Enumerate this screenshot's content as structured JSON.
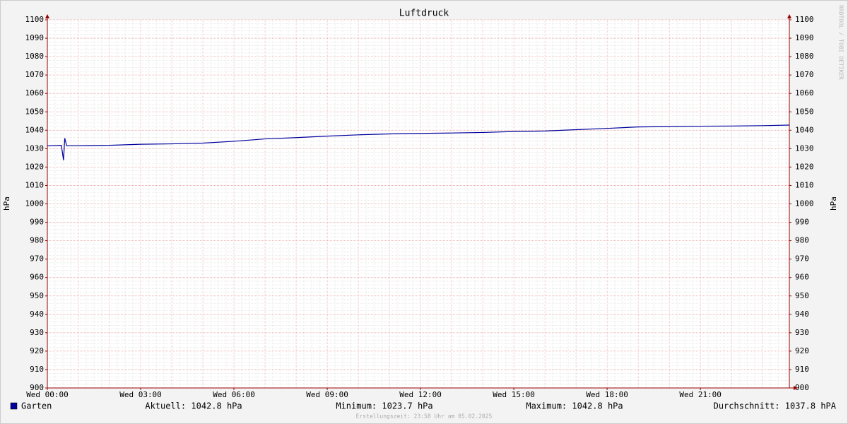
{
  "chart_data": {
    "type": "line",
    "title": "Luftdruck",
    "ylabel": "hPa",
    "watermark": "RRDTOOL / TOBI OETIKER",
    "footer": "Erstellungszeit: 23:58 Uhr am 05.02.2025",
    "x": [
      0,
      0.45,
      0.52,
      0.56,
      0.62,
      1,
      2,
      3,
      4,
      5,
      6,
      7,
      8,
      9,
      10,
      11,
      12,
      13,
      14,
      15,
      16,
      17,
      18,
      19,
      20,
      21,
      22,
      23,
      23.86
    ],
    "series": [
      {
        "name": "Garten",
        "color": "#00009c",
        "values": [
          1031.5,
          1031.8,
          1023.7,
          1035.7,
          1031.6,
          1031.6,
          1031.8,
          1032.4,
          1032.6,
          1033.0,
          1034.0,
          1035.3,
          1036.0,
          1036.8,
          1037.5,
          1038.0,
          1038.3,
          1038.5,
          1038.8,
          1039.3,
          1039.6,
          1040.3,
          1041.0,
          1041.8,
          1042.0,
          1042.2,
          1042.3,
          1042.5,
          1042.8
        ]
      }
    ],
    "stats": [
      "Aktuell: 1042.8 hPa",
      "Minimum: 1023.7 hPa",
      "Maximum: 1042.8 hPa",
      "Durchschnitt: 1037.8 hPA"
    ],
    "xlim": [
      0,
      23.86
    ],
    "xticks": [
      {
        "value": 0,
        "label": "Wed 00:00"
      },
      {
        "value": 3,
        "label": "Wed 03:00"
      },
      {
        "value": 6,
        "label": "Wed 06:00"
      },
      {
        "value": 9,
        "label": "Wed 09:00"
      },
      {
        "value": 12,
        "label": "Wed 12:00"
      },
      {
        "value": 15,
        "label": "Wed 15:00"
      },
      {
        "value": 18,
        "label": "Wed 18:00"
      },
      {
        "value": 21,
        "label": "Wed 21:00"
      }
    ],
    "ylim": [
      900,
      1100
    ],
    "yticks": [
      900,
      910,
      920,
      930,
      940,
      950,
      960,
      970,
      980,
      990,
      1000,
      1010,
      1020,
      1030,
      1040,
      1050,
      1060,
      1070,
      1080,
      1090,
      1100
    ],
    "grid": true
  }
}
